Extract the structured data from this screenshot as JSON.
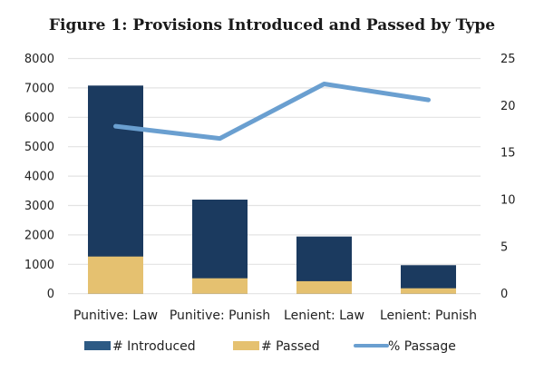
{
  "chart_data": {
    "type": "bar",
    "stacked": true,
    "title": "Figure 1: Provisions Introduced and Passed by Type",
    "categories": [
      "Punitive: Law",
      "Punitive: Punish",
      "Lenient: Law",
      "Lenient: Punish"
    ],
    "series": [
      {
        "name": "# Introduced",
        "type": "bar",
        "axis": "left",
        "color": "#1b3a5f",
        "values": [
          7080,
          3200,
          1945,
          970
        ]
      },
      {
        "name": "# Passed",
        "type": "bar",
        "axis": "left",
        "color": "#e5c170",
        "values": [
          1265,
          525,
          425,
          185
        ]
      },
      {
        "name": "% Passage",
        "type": "line",
        "axis": "right",
        "color": "#6a9fd0",
        "values": [
          17.8,
          16.5,
          22.3,
          20.6
        ]
      }
    ],
    "yleft": {
      "min": 0,
      "max": 8000,
      "ticks": [
        0,
        1000,
        2000,
        3000,
        4000,
        5000,
        6000,
        7000,
        8000
      ]
    },
    "yright": {
      "min": 0,
      "max": 25,
      "ticks": [
        0,
        5,
        10,
        15,
        20,
        25
      ]
    },
    "xlabel": "",
    "ylabel": "",
    "grid": true,
    "legend_position": "bottom"
  }
}
